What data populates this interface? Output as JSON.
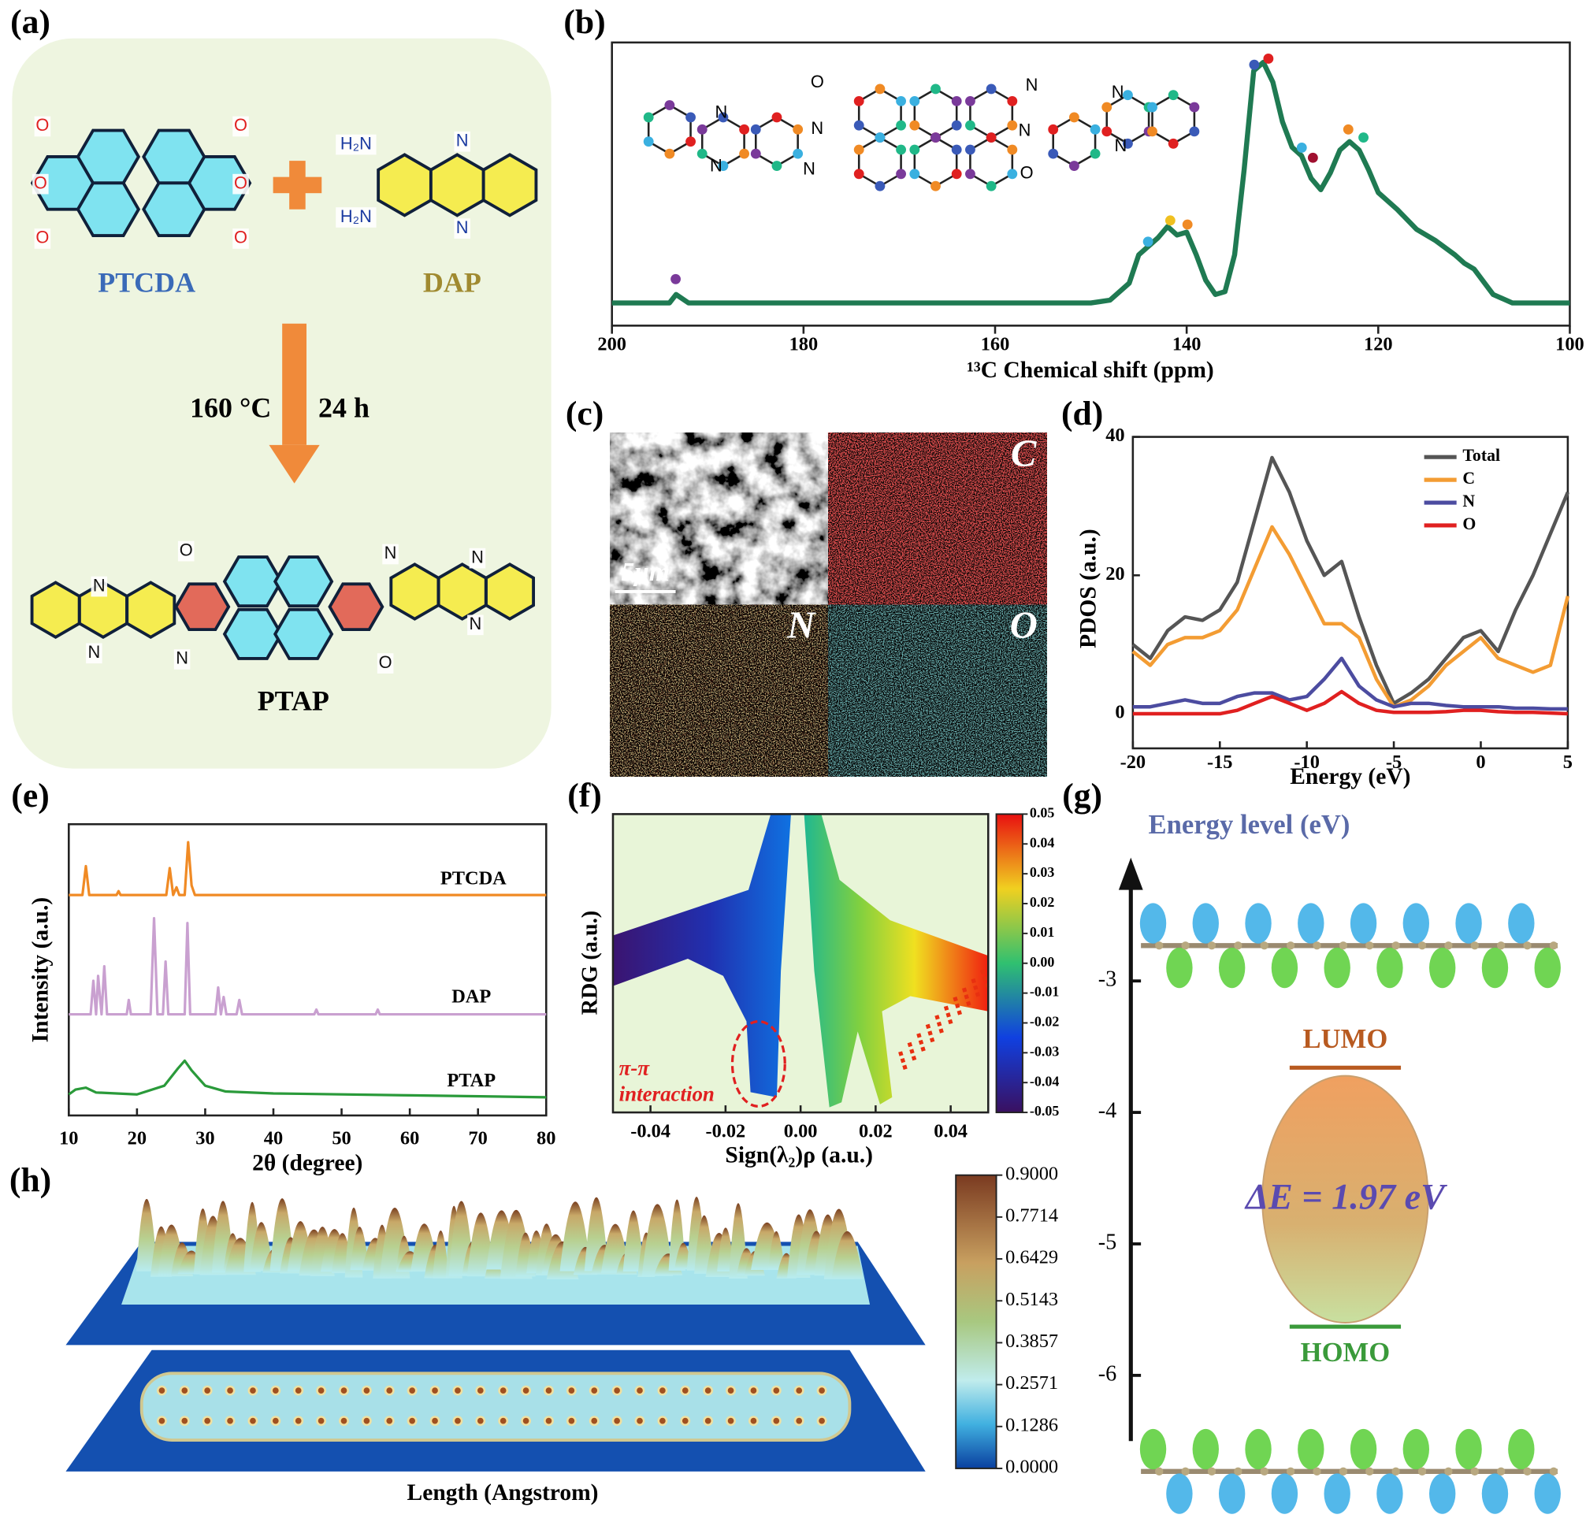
{
  "panel_labels": [
    "(a)",
    "(b)",
    "(c)",
    "(d)",
    "(e)",
    "(f)",
    "(g)",
    "(h)"
  ],
  "scheme": {
    "reactants": [
      "PTCDA",
      "DAP"
    ],
    "conditions": [
      "160 °C",
      "24 h"
    ],
    "product": "PTAP",
    "atoms": [
      "O",
      "O",
      "O",
      "O",
      "O",
      "O",
      "H₂N",
      "H₂N",
      "N",
      "N",
      "O",
      "O",
      "N",
      "N",
      "N",
      "N",
      "N",
      "N"
    ]
  },
  "structure_atoms": [
    "O",
    "O",
    "N",
    "N",
    "N",
    "N",
    "N",
    "N",
    "N",
    "N"
  ],
  "sem": {
    "scale_bar": "5μm",
    "maps": [
      "C",
      "N",
      "O"
    ]
  },
  "chart_data": [
    {
      "type": "line",
      "xlabel": "¹³C Chemical shift (ppm)",
      "xlim": [
        200,
        100
      ],
      "xticks": [
        200,
        180,
        160,
        140,
        120,
        100
      ],
      "ylim": [
        0,
        100
      ],
      "color": "#1f7a52",
      "x": [
        200,
        196,
        194,
        193.3,
        192,
        190,
        180,
        170,
        160,
        150,
        148,
        146,
        145,
        144,
        143,
        142,
        141,
        140,
        139,
        138,
        137,
        136,
        135,
        134,
        133,
        132,
        131,
        130,
        129,
        128,
        127,
        126,
        125,
        124,
        123,
        122,
        121,
        120,
        118,
        116,
        114,
        112,
        111,
        110,
        108,
        106,
        104,
        102,
        100
      ],
      "values": [
        8,
        8,
        8,
        11,
        8,
        8,
        8,
        8,
        8,
        8,
        9,
        15,
        25,
        28,
        31,
        35,
        32,
        33,
        25,
        16,
        11,
        12,
        25,
        55,
        90,
        93,
        86,
        72,
        63,
        60,
        52,
        48,
        54,
        62,
        65,
        62,
        55,
        47,
        41,
        34,
        30,
        25,
        22,
        20,
        11,
        8,
        8,
        8,
        8
      ]
    },
    {
      "type": "multiline",
      "xlabel": "Energy (eV)",
      "ylabel": "PDOS (a.u.)",
      "xlim": [
        -20,
        5
      ],
      "xticks": [
        -20,
        -15,
        -10,
        -5,
        0,
        5
      ],
      "ylim": [
        -5,
        40
      ],
      "yticks": [
        0,
        20,
        40
      ],
      "legend": "top-right",
      "x": [
        -20,
        -19,
        -18,
        -17,
        -16,
        -15,
        -14,
        -13,
        -12,
        -11,
        -10,
        -9,
        -8,
        -7,
        -6,
        -5,
        -4,
        -3,
        -2,
        -1,
        0,
        1,
        2,
        3,
        4,
        5
      ],
      "series": [
        {
          "name": "Total",
          "color": "#555555",
          "values": [
            10,
            8,
            12,
            14,
            13.5,
            15,
            19,
            28,
            37,
            32,
            25,
            20,
            22,
            14,
            7,
            1.5,
            3,
            5,
            8,
            11,
            12,
            9,
            15,
            20,
            26,
            32
          ]
        },
        {
          "name": "C",
          "color": "#f39c33",
          "values": [
            9,
            7,
            10,
            11,
            11,
            12,
            15,
            21,
            27,
            23,
            18,
            13,
            13,
            11,
            5,
            1,
            2,
            4,
            7,
            9,
            11,
            8,
            7,
            6,
            7,
            17
          ]
        },
        {
          "name": "N",
          "color": "#4c4ca0",
          "values": [
            1,
            1,
            1.5,
            2,
            1.5,
            1.5,
            2.5,
            3,
            3,
            2,
            2.5,
            5,
            8,
            4,
            2,
            1,
            1.5,
            1.5,
            1.2,
            1,
            1,
            1,
            0.8,
            0.8,
            0.7,
            0.7
          ]
        },
        {
          "name": "O",
          "color": "#e02020",
          "values": [
            0,
            0,
            0,
            0,
            0,
            0,
            0.5,
            1.5,
            2.5,
            1.5,
            0.5,
            1.5,
            3.2,
            1.5,
            0.5,
            0.2,
            0.2,
            0.2,
            0.3,
            0.5,
            0.5,
            0.3,
            0.2,
            0.2,
            0.1,
            0
          ]
        }
      ]
    },
    {
      "type": "stacked_lines",
      "xlabel": "2θ (degree)",
      "ylabel": "Intensity (a.u.)",
      "xlim": [
        10,
        80
      ],
      "xticks": [
        10,
        20,
        30,
        40,
        50,
        60,
        70,
        80
      ],
      "series": [
        {
          "name": "PTCDA",
          "color": "#f08a24",
          "x": [
            10,
            12,
            12.5,
            13,
            17,
            17.3,
            17.6,
            24.3,
            24.8,
            25.3,
            25.8,
            26.2,
            27,
            27.5,
            28,
            28.5,
            40,
            80
          ],
          "values": [
            0,
            0,
            30,
            0,
            0,
            4,
            0,
            0,
            28,
            0,
            8,
            0,
            0,
            55,
            10,
            0,
            0,
            0
          ]
        },
        {
          "name": "DAP",
          "color": "#c9a0d0",
          "x": [
            10,
            13.2,
            13.6,
            14,
            14.3,
            14.8,
            15.2,
            15.6,
            18.5,
            18.8,
            19.1,
            22,
            22.5,
            23,
            23.8,
            24.2,
            24.6,
            27,
            27.4,
            27.8,
            31.5,
            31.9,
            32.3,
            32.7,
            33.1,
            34.6,
            35,
            35.4,
            46,
            46.3,
            46.6,
            55,
            55.3,
            55.6,
            80
          ],
          "values": [
            0,
            0,
            35,
            0,
            40,
            0,
            50,
            0,
            0,
            15,
            0,
            0,
            100,
            0,
            0,
            55,
            0,
            0,
            95,
            0,
            0,
            28,
            0,
            18,
            0,
            0,
            15,
            0,
            0,
            5,
            0,
            0,
            5,
            0,
            0
          ]
        },
        {
          "name": "PTAP",
          "color": "#2a9a3a",
          "x": [
            10,
            11,
            12.5,
            14,
            20,
            24,
            26,
            27,
            28,
            30,
            33,
            40,
            60,
            80
          ],
          "values": [
            3,
            8,
            10,
            5,
            3,
            12,
            30,
            38,
            28,
            12,
            6,
            4,
            2,
            0
          ]
        }
      ]
    },
    {
      "type": "rdg",
      "xlabel": "Sign(λ₂)ρ (a.u.)",
      "ylabel": "RDG (a.u.)",
      "xlim": [
        -0.05,
        0.05
      ],
      "xticks": [
        -0.04,
        -0.02,
        {
          "value": 0,
          "label": "0.00"
        },
        0.02,
        0.04
      ],
      "annotation": [
        "π-π",
        "interaction"
      ],
      "clim": [
        -0.05,
        0.05
      ],
      "cticks": [
        0.05,
        0.04,
        0.03,
        0.02,
        0.01,
        {
          "value": 0,
          "label": "0.00"
        },
        -0.01,
        -0.02,
        -0.03,
        -0.04,
        -0.05
      ]
    },
    {
      "type": "energy_level",
      "title": "Energy level (eV)",
      "ylim": [
        -6.5,
        -2.3
      ],
      "yticks": [
        -3,
        -4,
        -5,
        -6
      ],
      "levels": [
        {
          "name": "LUMO",
          "value": -3.66,
          "color": "#b85a20"
        },
        {
          "name": "HOMO",
          "value": -5.63,
          "color": "#3a9a3a"
        }
      ],
      "annotation": "ΔE = 1.97 eV"
    },
    {
      "type": "surface",
      "xlabel": "Length (Angstrom)",
      "clim": [
        0,
        0.9
      ],
      "cticks": [
        {
          "value": 0.9,
          "label": "0.9000"
        },
        0.7714,
        0.6429,
        0.5143,
        0.3857,
        0.2571,
        0.1286,
        {
          "value": 0,
          "label": "0.0000"
        }
      ]
    }
  ]
}
